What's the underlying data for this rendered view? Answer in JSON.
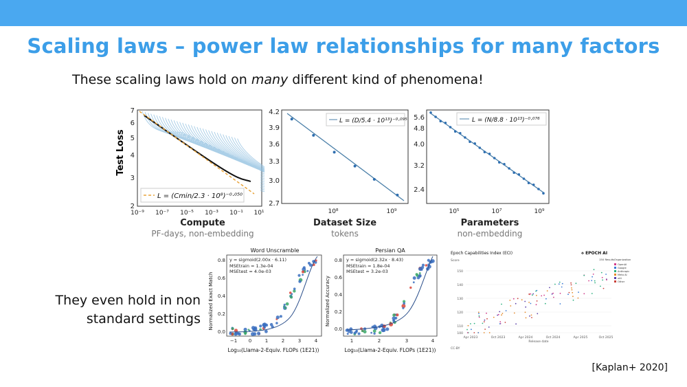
{
  "slide": {
    "title": "Scaling laws – power law relationships for many factors",
    "subtitle_pre": "These scaling laws hold on ",
    "subtitle_em": "many",
    "subtitle_post": " different kind of phenomena!",
    "note_line1": "They even hold in non",
    "note_line2": "standard settings",
    "citation": "[Kaplan+ 2020]"
  },
  "colors": {
    "topbar": "#4aa8f0",
    "title": "#3c9ee8",
    "fit_line": "#2a6fa8",
    "points": "#2f6fb0"
  },
  "chart_data": [
    {
      "type": "line",
      "ylabel": "Test Loss",
      "xlabel": "Compute",
      "xsublabel": "PF-days, non-embedding",
      "xticks": [
        "10⁻⁹",
        "10⁻⁷",
        "10⁻⁵",
        "10⁻³",
        "10⁻¹",
        "10¹"
      ],
      "yticks": [
        "7",
        "6",
        "5",
        "4",
        "3",
        "2"
      ],
      "legend": "L = (Cmin/2.3 · 10⁸)⁻⁰·⁰⁵⁰",
      "legend_placement": "bottom-left"
    },
    {
      "type": "line",
      "xlabel": "Dataset Size",
      "xsublabel": "tokens",
      "xticks": [
        "10⁸",
        "10⁹"
      ],
      "yticks": [
        "4.2",
        "3.9",
        "3.6",
        "3.3",
        "3.0",
        "2.7"
      ],
      "legend": "L = (D/5.4 · 10¹³)⁻⁰·⁰⁹⁵",
      "legend_placement": "top-right",
      "x": [
        22000000.0,
        50000000.0,
        110000000.0,
        240000000.0,
        500000000.0,
        1200000000.0
      ],
      "y": [
        4.1,
        3.83,
        3.55,
        3.32,
        3.1,
        2.84
      ]
    },
    {
      "type": "line",
      "xlabel": "Parameters",
      "xsublabel": "non-embedding",
      "xticks": [
        "10⁵",
        "10⁷",
        "10⁹"
      ],
      "yticks": [
        "5.6",
        "4.8",
        "4.0",
        "3.2",
        "2.4"
      ],
      "legend": "L = (N/8.8 · 10¹³)⁻⁰·⁰⁷⁶",
      "legend_placement": "top-right"
    },
    {
      "type": "scatter",
      "title": "Word Unscramble",
      "ylabel": "Normalized Exact Match",
      "xlabel": "Log₁₀(Llama-2-Equiv. FLOPs (1E21))",
      "xticks": [
        "−1",
        "0",
        "1",
        "2",
        "3",
        "4"
      ],
      "yticks": [
        "0.0",
        "0.2",
        "0.4",
        "0.6",
        "0.8"
      ],
      "fit": "y = sigmoid(2.00x · 6.11)",
      "mse_train": "MSEtrain = 1.3e-04",
      "mse_test": "MSEtest = 4.0e-03"
    },
    {
      "type": "scatter",
      "title": "Persian QA",
      "ylabel": "Normalized Accuracy",
      "xlabel": "Log₁₀(Llama-2-Equiv. FLOPs (1E21))",
      "xticks": [
        "1",
        "2",
        "3",
        "4"
      ],
      "yticks": [
        "0.0",
        "0.2",
        "0.4",
        "0.6",
        "0.8"
      ],
      "fit": "y = sigmoid(2.32x · 8.43)",
      "mse_train": "MSEtrain = 1.8e-04",
      "mse_test": "MSEtest = 3.2e-03"
    },
    {
      "type": "scatter",
      "title": "Epoch Capabilities Index (ECI)",
      "brand": "EPOCH AI",
      "ylabel": "Score",
      "xlabel": "Release date",
      "legend_title": "Organization",
      "legend_header": "150 Results",
      "legend": [
        "OpenAI",
        "Google",
        "Anthropic",
        "Meta AI",
        "xAI",
        "Other"
      ],
      "legend_colors": [
        "#d13b8a",
        "#3a7bd5",
        "#2bb07f",
        "#e58a2a",
        "#5a3ea8",
        "#c9403a"
      ],
      "xticks": [
        "Apr 2023",
        "Oct 2023",
        "Apr 2024",
        "Oct 2024",
        "Apr 2025",
        "Oct 2025"
      ],
      "yticks": [
        "150",
        "140",
        "130",
        "120",
        "110",
        "100"
      ],
      "footer": "CC-BY"
    }
  ]
}
